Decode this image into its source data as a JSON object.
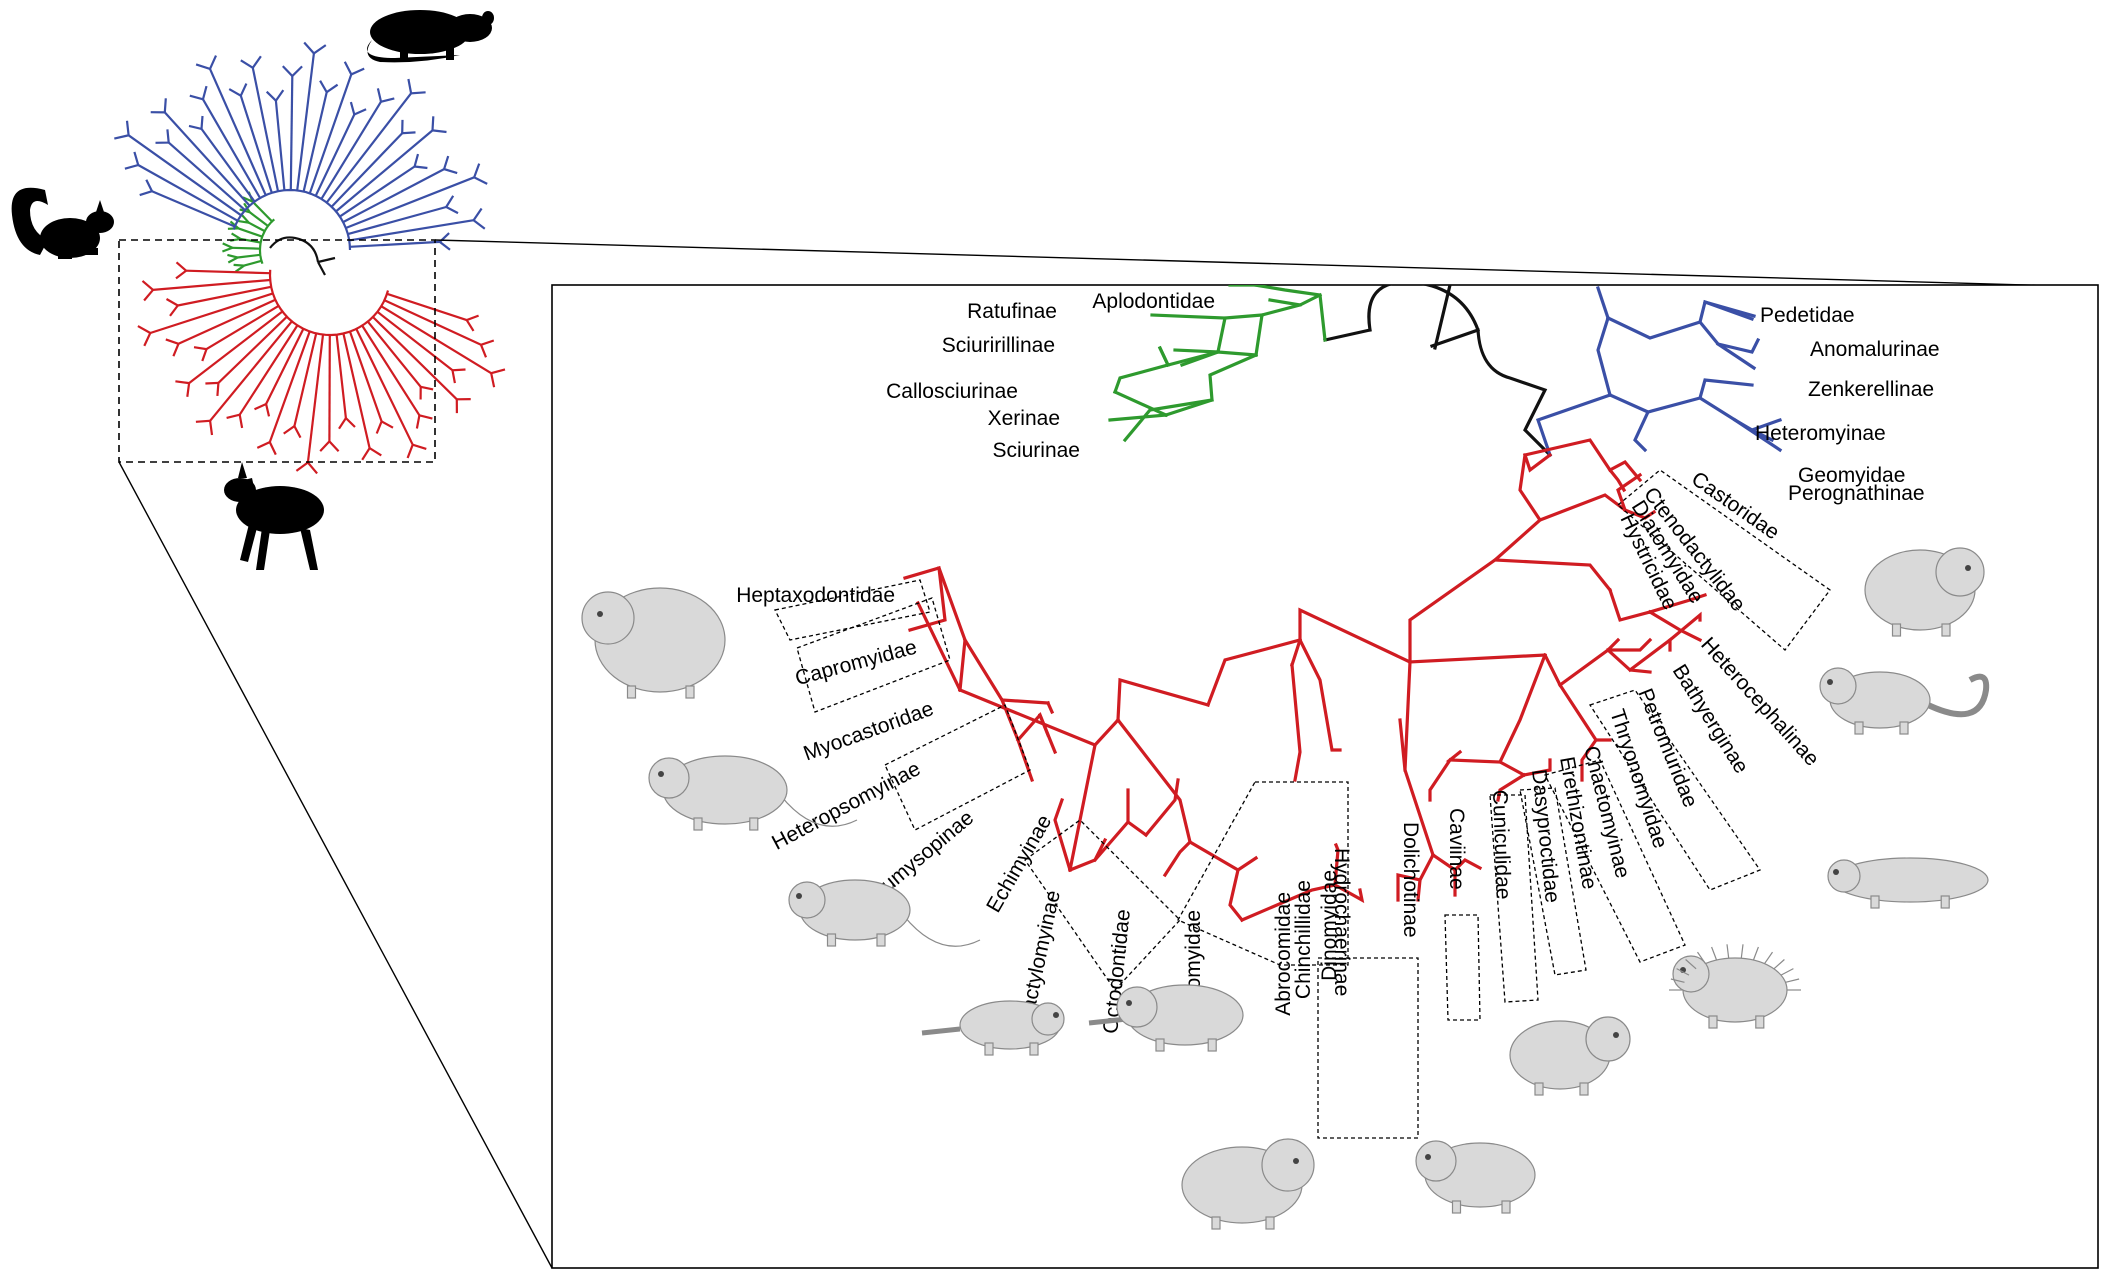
{
  "colors": {
    "sciuromorpha": "#2e9a2e",
    "castorimorpha": "#3a4fa6",
    "hystricomorpha": "#d01c22",
    "root": "#111111",
    "frame": "#000000",
    "illustration_fill": "#d9d9d9",
    "illustration_stroke": "#8a8a8a"
  },
  "silhouettes": [
    {
      "name": "rat-silhouette-icon"
    },
    {
      "name": "squirrel-silhouette-icon"
    },
    {
      "name": "mara-silhouette-icon"
    }
  ],
  "green_labels": [
    "Aplodontidae",
    "Ratufinae",
    "Sciuririllinae",
    "Callosciurinae",
    "Xerinae",
    "Sciurinae"
  ],
  "blue_labels": [
    "Pedetidae",
    "Anomalurinae",
    "Zenkerellinae",
    "Heteromyinae",
    "Geomyidae",
    "Perognathinae"
  ],
  "red_labels": [
    "Castoridae",
    "Ctenodactylidae",
    "Diatomyidae",
    "Hystricidae",
    "Heterocephalinae",
    "Bathyerginae",
    "Petromuridae",
    "Thryonomyidae",
    "Chaetomyinae",
    "Erethizontinae",
    "Dasyproctidae",
    "Cuniculidae",
    "Caviinae",
    "Dolichotinae",
    "Hydrochaerinae",
    "Dinomyidae",
    "Chinchillidae",
    "Abrocomidae",
    "Ctenomyidae",
    "Octodontidae",
    "Dactylomyinae",
    "Echimyinae",
    "Eumysopinae",
    "Heteropsomyinae",
    "Myocastoridae",
    "Capromyidae",
    "Heptaxodontidae"
  ],
  "boxed_labels": [
    "Ctenodactylidae",
    "Diatomyidae",
    "Hystricidae",
    "Petromuridae",
    "Thryonomyidae",
    "Chaetomyinae",
    "Erethizontinae",
    "Dasyproctidae",
    "Cuniculidae",
    "Caviinae",
    "Dolichotinae",
    "Hydrochaerinae",
    "Dinomyidae",
    "Chinchillidae",
    "Abrocomidae",
    "Ctenomyidae",
    "Octodontidae",
    "Echimyinae",
    "Eumysopinae",
    "Myocastoridae",
    "Capromyidae"
  ],
  "illustrations": [
    "illustration-hutia",
    "illustration-coypu",
    "illustration-spiny-rat",
    "illustration-tuco-tuco",
    "illustration-degu",
    "illustration-capybara",
    "illustration-mara",
    "illustration-agouti",
    "illustration-porcupine",
    "illustration-naked-mole-rat",
    "illustration-dassie-rat",
    "illustration-gundi"
  ]
}
